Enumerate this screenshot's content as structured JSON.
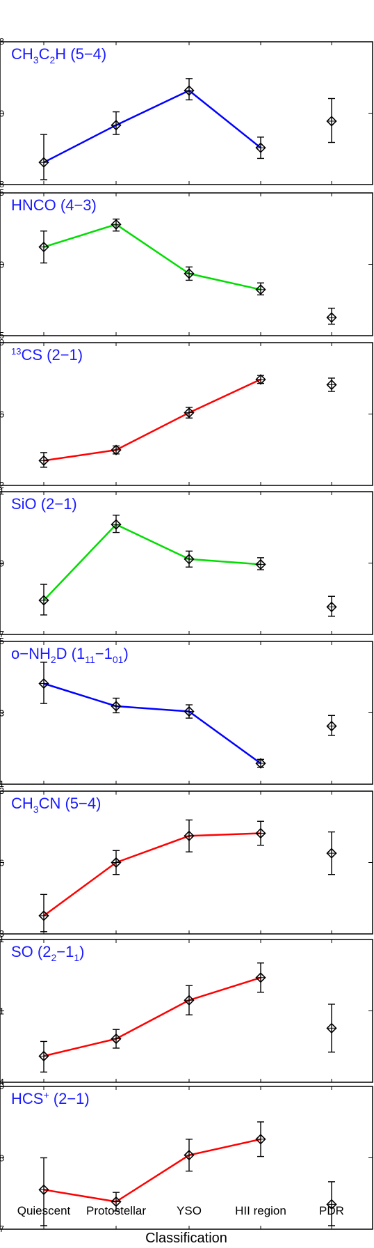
{
  "chart_data": {
    "xlabel": "Classification",
    "categories": [
      "Quiescent",
      "Protostellar",
      "YSO",
      "HII region",
      "PDR"
    ],
    "connected_categories": [
      "Quiescent",
      "Protostellar",
      "YSO",
      "HII region"
    ],
    "type": "line",
    "panels": [
      {
        "title": {
          "main": "CH",
          "s1": "3",
          "mid": "C",
          "s2": "2",
          "end": "H (5−4)"
        },
        "line_color": "#0000ff",
        "ylim": [
          0,
          1
        ],
        "yticks": [
          0.5
        ],
        "ytick_labels": {
          "top": "8",
          "mid": "0",
          "bottom": "8"
        },
        "values": [
          0.13,
          0.41,
          0.67,
          0.24,
          0.44
        ],
        "err_low": [
          0.13,
          0.07,
          0.07,
          0.08,
          0.16
        ],
        "err_high": [
          0.21,
          0.1,
          0.09,
          0.08,
          0.17
        ]
      },
      {
        "title": {
          "main": "HNCO (4−3)"
        },
        "line_color": "#00dd00",
        "ylim": [
          0,
          1
        ],
        "yticks": [
          0.5
        ],
        "ytick_labels": {
          "top": "5",
          "mid": "0",
          "bottom": "5"
        },
        "values": [
          0.63,
          0.8,
          0.43,
          0.31,
          0.1
        ],
        "err_low": [
          0.12,
          0.05,
          0.05,
          0.04,
          0.05
        ],
        "err_high": [
          0.12,
          0.04,
          0.05,
          0.05,
          0.07
        ]
      },
      {
        "title": {
          "pre": "13",
          "main": "CS (2−1)"
        },
        "line_color": "#ff0000",
        "ylim": [
          0,
          1
        ],
        "yticks": [
          0.5
        ],
        "ytick_labels": {
          "top": "9",
          "mid": "6",
          "bottom": "2"
        },
        "values": [
          0.15,
          0.23,
          0.51,
          0.76,
          0.72
        ],
        "err_low": [
          0.05,
          0.03,
          0.04,
          0.03,
          0.05
        ],
        "err_high": [
          0.06,
          0.03,
          0.04,
          0.03,
          0.05
        ]
      },
      {
        "title": {
          "main": "SiO (2−1)"
        },
        "line_color": "#00dd00",
        "ylim": [
          0,
          1
        ],
        "yticks": [
          0.5
        ],
        "ytick_labels": {
          "top": "1",
          "mid": "9",
          "bottom": "7"
        },
        "values": [
          0.22,
          0.79,
          0.53,
          0.49,
          0.17
        ],
        "err_low": [
          0.11,
          0.06,
          0.06,
          0.04,
          0.07
        ],
        "err_high": [
          0.12,
          0.07,
          0.06,
          0.05,
          0.08
        ]
      },
      {
        "title": {
          "main": "o−NH",
          "s1": "2",
          "mid": "D (1",
          "s2": "11",
          "mid2": "−1",
          "s3": "01",
          "end": ")"
        },
        "line_color": "#0000ff",
        "ylim": [
          0,
          1
        ],
        "yticks": [
          0.5
        ],
        "ytick_labels": {
          "top": "5",
          "mid": "3",
          "bottom": "1"
        },
        "values": [
          0.72,
          0.55,
          0.51,
          0.12,
          0.4
        ],
        "err_low": [
          0.15,
          0.05,
          0.05,
          0.03,
          0.07
        ],
        "err_high": [
          0.16,
          0.06,
          0.05,
          0.03,
          0.08
        ]
      },
      {
        "title": {
          "main": "CH",
          "s1": "3",
          "end": "CN (5−4)"
        },
        "line_color": "#ff0000",
        "ylim": [
          0,
          1
        ],
        "yticks": [
          0.5
        ],
        "ytick_labels": {
          "top": "3",
          "mid": "6",
          "bottom": "3"
        },
        "values": [
          0.1,
          0.5,
          0.7,
          0.72,
          0.57
        ],
        "err_low": [
          0.12,
          0.09,
          0.12,
          0.09,
          0.16
        ],
        "err_high": [
          0.16,
          0.09,
          0.12,
          0.09,
          0.16
        ]
      },
      {
        "title": {
          "main": "SO (2",
          "s1": "2",
          "mid": "−1",
          "s2": "1",
          "end": ")"
        },
        "line_color": "#ff0000",
        "ylim": [
          0,
          1
        ],
        "yticks": [
          0.5
        ],
        "ytick_labels": {
          "top": "1",
          "mid": "1",
          "bottom": "4"
        },
        "values": [
          0.16,
          0.29,
          0.58,
          0.75,
          0.37
        ],
        "err_low": [
          0.12,
          0.07,
          0.11,
          0.11,
          0.18
        ],
        "err_high": [
          0.11,
          0.07,
          0.11,
          0.11,
          0.18
        ]
      },
      {
        "title": {
          "main": "HCS",
          "sup": "+",
          "end": " (2−1)"
        },
        "line_color": "#ff0000",
        "ylim": [
          0,
          1
        ],
        "yticks": [
          0.5
        ],
        "ytick_labels": {
          "top": "9",
          "mid": "8",
          "bottom": "7"
        },
        "values": [
          0.26,
          0.17,
          0.52,
          0.64,
          0.15
        ],
        "err_low": [
          0.27,
          0.07,
          0.12,
          0.13,
          0.16
        ],
        "err_high": [
          0.24,
          0.07,
          0.12,
          0.13,
          0.17
        ]
      }
    ]
  }
}
